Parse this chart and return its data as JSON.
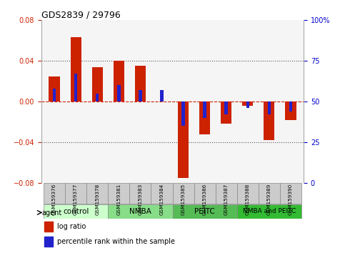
{
  "title": "GDS2839 / 29796",
  "samples": [
    "GSM159376",
    "GSM159377",
    "GSM159378",
    "GSM159381",
    "GSM159383",
    "GSM159384",
    "GSM159385",
    "GSM159386",
    "GSM159387",
    "GSM159388",
    "GSM159389",
    "GSM159390"
  ],
  "log_ratio": [
    0.025,
    0.063,
    0.034,
    0.04,
    0.035,
    0.0,
    -0.075,
    -0.032,
    -0.022,
    -0.004,
    -0.038,
    -0.018
  ],
  "percentile_rank": [
    0.58,
    0.67,
    0.55,
    0.6,
    0.57,
    0.57,
    0.35,
    0.4,
    0.42,
    0.46,
    0.42,
    0.44
  ],
  "ylim": [
    -0.08,
    0.08
  ],
  "yticks_left": [
    -0.08,
    -0.04,
    0.0,
    0.04,
    0.08
  ],
  "yticks_right": [
    0,
    25,
    50,
    75,
    100
  ],
  "groups": [
    {
      "label": "control",
      "start": 0,
      "end": 2,
      "color": "#ccffcc"
    },
    {
      "label": "NMBA",
      "start": 3,
      "end": 5,
      "color": "#88dd88"
    },
    {
      "label": "PEITC",
      "start": 6,
      "end": 8,
      "color": "#55bb55"
    },
    {
      "label": "NMBA and PEITC",
      "start": 9,
      "end": 11,
      "color": "#33bb33"
    }
  ],
  "bar_width": 0.5,
  "pct_bar_width": 0.15,
  "log_ratio_color": "#cc2200",
  "percentile_color": "#2222cc",
  "zero_line_color": "#cc2200",
  "dotted_line_color": "#555555",
  "bg_color": "#ffffff",
  "plot_bg_color": "#f5f5f5",
  "title_color": "#000000",
  "left_label_color": "#cc2200",
  "right_label_color": "#0000cc",
  "sample_box_color": "#cccccc",
  "sample_box_edge": "#888888"
}
